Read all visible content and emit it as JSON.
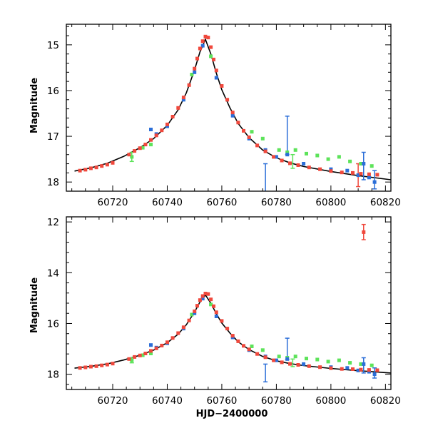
{
  "colors": {
    "series_red": "#f0483c",
    "series_blue": "#2b6ed8",
    "series_green": "#5de35a",
    "model": "#000000",
    "frame": "#000000"
  },
  "chart_data": [
    {
      "type": "scatter",
      "title": "",
      "xlabel": "",
      "ylabel": "Magnitude",
      "xlim": [
        60703,
        60822
      ],
      "ylim": [
        18.2,
        14.55
      ],
      "y_inverted": true,
      "grid": false,
      "legend": "none",
      "x_ticks": [
        60720,
        60740,
        60760,
        60780,
        60800,
        60820
      ],
      "x_tick_labels": [
        "60720",
        "60740",
        "60760",
        "60780",
        "60800",
        "60820"
      ],
      "y_ticks": [
        15,
        16,
        17,
        18
      ],
      "y_tick_labels": [
        "15",
        "16",
        "17",
        "18"
      ],
      "model_curve": {
        "color": "black",
        "x": [
          60706,
          60712,
          60718,
          60724,
          60730,
          60735,
          60740,
          60744,
          60747,
          60750,
          60752,
          60754,
          60756,
          60758,
          60760,
          60763,
          60766,
          60770,
          60775,
          60780,
          60785,
          60790,
          60800,
          60810,
          60822
        ],
        "y": [
          17.76,
          17.69,
          17.59,
          17.44,
          17.25,
          17.05,
          16.76,
          16.42,
          16.05,
          15.55,
          15.15,
          14.88,
          15.2,
          15.62,
          15.98,
          16.38,
          16.72,
          17.03,
          17.3,
          17.47,
          17.58,
          17.66,
          17.77,
          17.86,
          17.95
        ]
      },
      "series": [
        {
          "color": "red",
          "x": [
            60708,
            60710,
            60712,
            60714,
            60716,
            60718,
            60720,
            60726,
            60728,
            60730,
            60732,
            60734,
            60736,
            60738,
            60740,
            60742,
            60744,
            60746,
            60748,
            60750,
            60751,
            60752,
            60753,
            60754,
            60755,
            60756,
            60757,
            60758,
            60760,
            60762,
            60764,
            60766,
            60768,
            60770,
            60773,
            60776,
            60779,
            60782,
            60785,
            60788,
            60792,
            60796,
            60800,
            60804,
            60808,
            60811,
            60814,
            60817
          ],
          "y": [
            17.75,
            17.73,
            17.7,
            17.68,
            17.65,
            17.62,
            17.58,
            17.4,
            17.32,
            17.26,
            17.18,
            17.08,
            16.98,
            16.87,
            16.74,
            16.57,
            16.38,
            16.15,
            15.88,
            15.52,
            15.3,
            15.08,
            14.92,
            14.82,
            14.84,
            15.05,
            15.32,
            15.56,
            15.9,
            16.2,
            16.48,
            16.7,
            16.88,
            17.02,
            17.2,
            17.33,
            17.45,
            17.53,
            17.59,
            17.63,
            17.68,
            17.72,
            17.76,
            17.79,
            17.8,
            17.82,
            17.83,
            17.84
          ]
        },
        {
          "color": "blue",
          "x": [
            60734,
            60736,
            60740,
            60746,
            60750,
            60753,
            60758,
            60764,
            60770,
            60776,
            60780,
            60784,
            60790,
            60800,
            60806,
            60810,
            60812,
            60814,
            60816
          ],
          "y": [
            16.85,
            16.95,
            16.78,
            16.2,
            15.6,
            15.02,
            15.72,
            16.55,
            17.05,
            17.3,
            17.45,
            17.4,
            17.6,
            17.72,
            17.75,
            17.85,
            17.6,
            17.9,
            18.0
          ]
        },
        {
          "color": "green",
          "x": [
            60727,
            60731,
            60734,
            60749,
            60756,
            60771,
            60775,
            60781,
            60784,
            60787,
            60791,
            60795,
            60799,
            60803,
            60807,
            60811,
            60815
          ],
          "y": [
            17.45,
            17.25,
            17.18,
            15.65,
            15.25,
            16.9,
            17.05,
            17.3,
            17.35,
            17.3,
            17.38,
            17.42,
            17.5,
            17.45,
            17.55,
            17.6,
            17.65
          ]
        }
      ],
      "error_bars": [
        {
          "color": "blue",
          "x": 60776,
          "y": 17.95,
          "err": 0.35
        },
        {
          "color": "blue",
          "x": 60784,
          "y": 16.98,
          "err": 0.42
        },
        {
          "color": "blue",
          "x": 60812,
          "y": 17.65,
          "err": 0.3
        },
        {
          "color": "blue",
          "x": 60816,
          "y": 17.95,
          "err": 0.2
        },
        {
          "color": "green",
          "x": 60727,
          "y": 17.45,
          "err": 0.1
        },
        {
          "color": "green",
          "x": 60786,
          "y": 17.55,
          "err": 0.15
        },
        {
          "color": "red",
          "x": 60810,
          "y": 17.85,
          "err": 0.25
        }
      ]
    },
    {
      "type": "scatter",
      "title": "",
      "xlabel": "HJD−2400000",
      "ylabel": "Magnitude",
      "xlim": [
        60703,
        60822
      ],
      "ylim": [
        18.6,
        11.8
      ],
      "y_inverted": true,
      "grid": false,
      "legend": "none",
      "x_ticks": [
        60720,
        60740,
        60760,
        60780,
        60800,
        60820
      ],
      "x_tick_labels": [
        "60720",
        "60740",
        "60760",
        "60780",
        "60800",
        "60820"
      ],
      "y_ticks": [
        12,
        14,
        16,
        18
      ],
      "y_tick_labels": [
        "12",
        "14",
        "16",
        "18"
      ],
      "model_curve": {
        "color": "black",
        "x": [
          60706,
          60712,
          60718,
          60724,
          60730,
          60735,
          60740,
          60744,
          60747,
          60750,
          60752,
          60754,
          60756,
          60758,
          60760,
          60763,
          60766,
          60770,
          60775,
          60780,
          60785,
          60790,
          60800,
          60810,
          60822
        ],
        "y": [
          17.76,
          17.69,
          17.59,
          17.44,
          17.25,
          17.05,
          16.76,
          16.42,
          16.05,
          15.55,
          15.15,
          14.88,
          15.2,
          15.62,
          15.98,
          16.38,
          16.72,
          17.03,
          17.3,
          17.47,
          17.58,
          17.66,
          17.77,
          17.86,
          17.95
        ]
      },
      "series": [
        {
          "color": "red",
          "x": [
            60708,
            60710,
            60712,
            60714,
            60716,
            60718,
            60720,
            60726,
            60728,
            60730,
            60732,
            60734,
            60736,
            60738,
            60740,
            60742,
            60744,
            60746,
            60748,
            60750,
            60751,
            60752,
            60753,
            60754,
            60755,
            60756,
            60757,
            60758,
            60760,
            60762,
            60764,
            60766,
            60768,
            60770,
            60773,
            60776,
            60779,
            60782,
            60785,
            60788,
            60792,
            60796,
            60800,
            60804,
            60808,
            60811,
            60814,
            60817,
            60812
          ],
          "y": [
            17.75,
            17.73,
            17.7,
            17.68,
            17.65,
            17.62,
            17.58,
            17.4,
            17.32,
            17.26,
            17.18,
            17.08,
            16.98,
            16.87,
            16.74,
            16.57,
            16.38,
            16.15,
            15.88,
            15.52,
            15.3,
            15.08,
            14.92,
            14.82,
            14.84,
            15.05,
            15.32,
            15.56,
            15.9,
            16.2,
            16.48,
            16.7,
            16.88,
            17.02,
            17.2,
            17.33,
            17.45,
            17.53,
            17.59,
            17.63,
            17.68,
            17.72,
            17.76,
            17.79,
            17.8,
            17.82,
            17.83,
            17.84,
            12.4
          ]
        },
        {
          "color": "blue",
          "x": [
            60734,
            60736,
            60740,
            60746,
            60750,
            60753,
            60758,
            60764,
            60770,
            60776,
            60780,
            60784,
            60790,
            60800,
            60806,
            60810,
            60812,
            60814,
            60816
          ],
          "y": [
            16.85,
            16.95,
            16.78,
            16.2,
            15.6,
            15.02,
            15.72,
            16.55,
            17.05,
            17.3,
            17.45,
            17.4,
            17.6,
            17.72,
            17.75,
            17.85,
            17.6,
            17.9,
            18.0
          ]
        },
        {
          "color": "green",
          "x": [
            60727,
            60731,
            60734,
            60749,
            60756,
            60771,
            60775,
            60781,
            60784,
            60787,
            60791,
            60795,
            60799,
            60803,
            60807,
            60811,
            60815
          ],
          "y": [
            17.45,
            17.25,
            17.18,
            15.65,
            15.25,
            16.9,
            17.05,
            17.3,
            17.35,
            17.3,
            17.38,
            17.42,
            17.5,
            17.45,
            17.55,
            17.6,
            17.65
          ]
        }
      ],
      "error_bars": [
        {
          "color": "blue",
          "x": 60776,
          "y": 17.95,
          "err": 0.35
        },
        {
          "color": "blue",
          "x": 60784,
          "y": 17.0,
          "err": 0.42
        },
        {
          "color": "blue",
          "x": 60812,
          "y": 17.65,
          "err": 0.3
        },
        {
          "color": "blue",
          "x": 60816,
          "y": 17.95,
          "err": 0.2
        },
        {
          "color": "green",
          "x": 60727,
          "y": 17.45,
          "err": 0.1
        },
        {
          "color": "green",
          "x": 60786,
          "y": 17.55,
          "err": 0.15
        },
        {
          "color": "red",
          "x": 60812,
          "y": 12.4,
          "err": 0.3
        }
      ]
    }
  ]
}
